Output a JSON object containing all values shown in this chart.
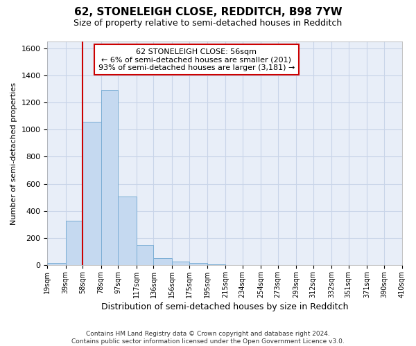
{
  "title1": "62, STONELEIGH CLOSE, REDDITCH, B98 7YW",
  "title2": "Size of property relative to semi-detached houses in Redditch",
  "xlabel": "Distribution of semi-detached houses by size in Redditch",
  "ylabel": "Number of semi-detached properties",
  "footer1": "Contains HM Land Registry data © Crown copyright and database right 2024.",
  "footer2": "Contains public sector information licensed under the Open Government Licence v3.0.",
  "annotation_title": "62 STONELEIGH CLOSE: 56sqm",
  "annotation_line2": "← 6% of semi-detached houses are smaller (201)",
  "annotation_line3": "93% of semi-detached houses are larger (3,181) →",
  "property_size": 56,
  "bin_edges": [
    19,
    39,
    58,
    78,
    97,
    117,
    136,
    156,
    175,
    195,
    215,
    234,
    254,
    273,
    293,
    312,
    332,
    351,
    371,
    390,
    410
  ],
  "bar_heights": [
    15,
    325,
    1055,
    1290,
    505,
    150,
    50,
    25,
    15,
    5,
    2,
    0,
    0,
    0,
    0,
    0,
    0,
    0,
    0,
    0
  ],
  "bar_color": "#c5d9f0",
  "bar_edge_color": "#7aadd4",
  "vline_x": 58,
  "vline_color": "#cc0000",
  "ylim": [
    0,
    1650
  ],
  "yticks": [
    0,
    200,
    400,
    600,
    800,
    1000,
    1200,
    1400,
    1600
  ],
  "xtick_labels": [
    "19sqm",
    "39sqm",
    "58sqm",
    "78sqm",
    "97sqm",
    "117sqm",
    "136sqm",
    "156sqm",
    "175sqm",
    "195sqm",
    "215sqm",
    "234sqm",
    "254sqm",
    "273sqm",
    "293sqm",
    "312sqm",
    "332sqm",
    "351sqm",
    "371sqm",
    "390sqm",
    "410sqm"
  ],
  "grid_color": "#c8d4e8",
  "bg_color": "#e8eef8",
  "annotation_box_color": "white",
  "annotation_border_color": "#cc0000",
  "title1_fontsize": 11,
  "title2_fontsize": 9,
  "ylabel_fontsize": 8,
  "xlabel_fontsize": 9,
  "ytick_fontsize": 8,
  "xtick_fontsize": 7,
  "footer_fontsize": 6.5
}
